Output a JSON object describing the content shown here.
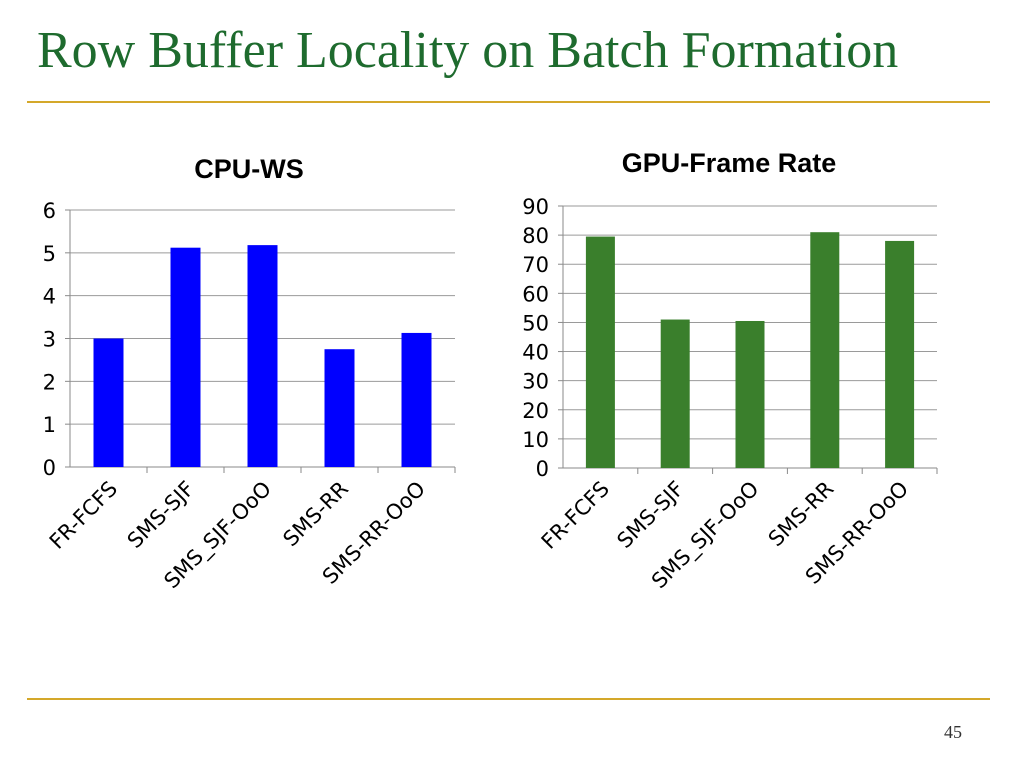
{
  "slide": {
    "title": "Row Buffer Locality on Batch Formation",
    "page_number": "45",
    "title_color": "#1E6B2E",
    "rule_color": "#D4A82A"
  },
  "chart_data": [
    {
      "type": "bar",
      "title": "CPU-WS",
      "categories": [
        "FR-FCFS",
        "SMS-SJF",
        "SMS_SJF-OoO",
        "SMS-RR",
        "SMS-RR-OoO"
      ],
      "values": [
        3.0,
        5.12,
        5.18,
        2.75,
        3.13
      ],
      "ylim": [
        0,
        6
      ],
      "yticks": [
        0,
        1,
        2,
        3,
        4,
        5,
        6
      ],
      "grid": true,
      "bar_color": "#0000FF"
    },
    {
      "type": "bar",
      "title": "GPU-Frame Rate",
      "categories": [
        "FR-FCFS",
        "SMS-SJF",
        "SMS_SJF-OoO",
        "SMS-RR",
        "SMS-RR-OoO"
      ],
      "values": [
        79.5,
        51,
        50.5,
        81,
        78
      ],
      "ylim": [
        0,
        90
      ],
      "yticks": [
        0,
        10,
        20,
        30,
        40,
        50,
        60,
        70,
        80,
        90
      ],
      "grid": true,
      "bar_color": "#3A7F2C"
    }
  ]
}
